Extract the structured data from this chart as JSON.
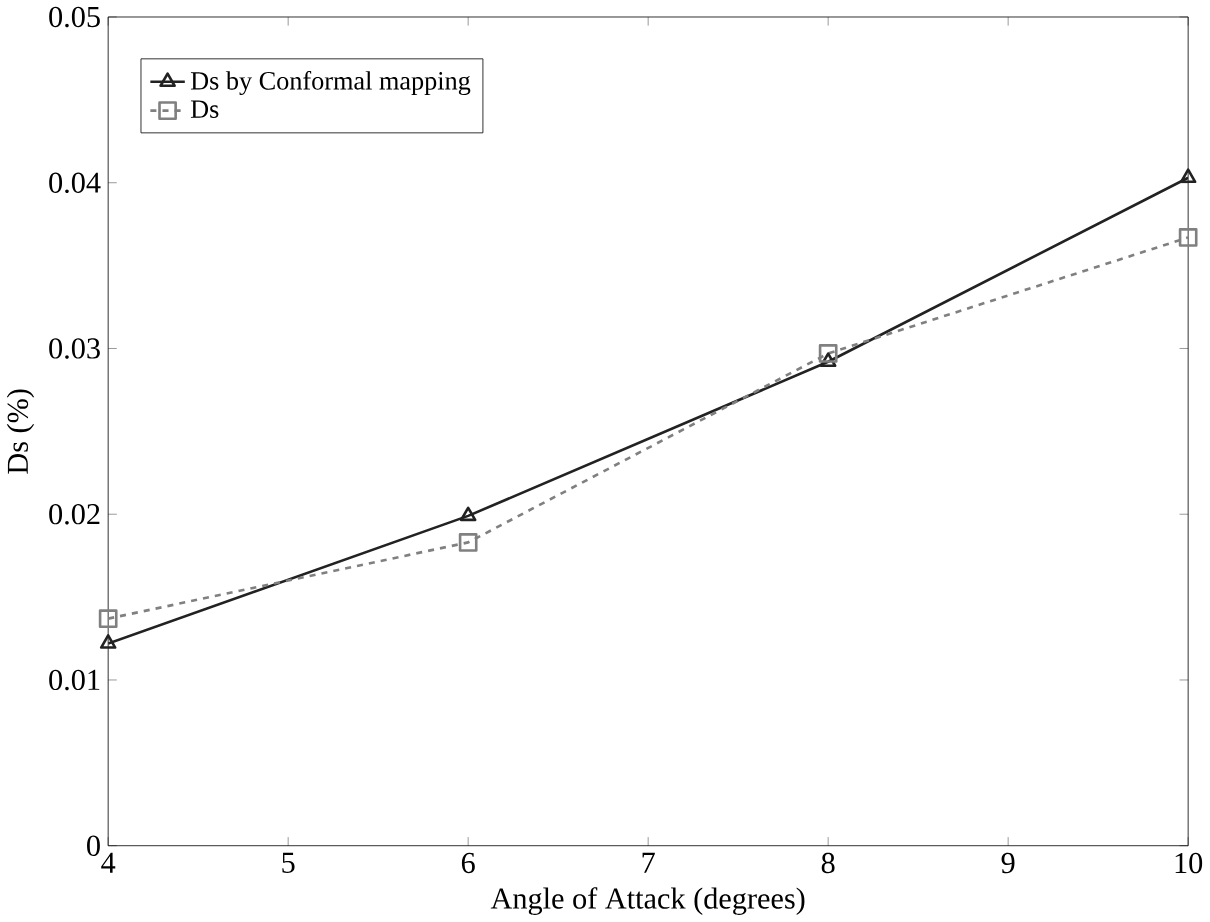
{
  "chart_data": {
    "type": "line",
    "xlabel": "Angle of Attack (degrees)",
    "ylabel": "Ds (%)",
    "x": [
      4,
      6,
      8,
      10
    ],
    "series": [
      {
        "name": "Ds by Conformal mapping",
        "color": "#222222",
        "marker": "triangle",
        "line_style": "solid",
        "values": [
          0.0122,
          0.0199,
          0.0292,
          0.0403
        ]
      },
      {
        "name": "Ds",
        "color": "#808080",
        "marker": "square",
        "line_style": "dashed",
        "values": [
          0.0137,
          0.0183,
          0.0297,
          0.0367
        ]
      }
    ],
    "xlim": [
      4,
      10
    ],
    "xticks": [
      4,
      5,
      6,
      7,
      8,
      9,
      10
    ],
    "ylim": [
      0,
      0.05
    ],
    "yticks": [
      0,
      0.01,
      0.02,
      0.03,
      0.04,
      0.05
    ],
    "grid": false,
    "legend": "top left"
  }
}
